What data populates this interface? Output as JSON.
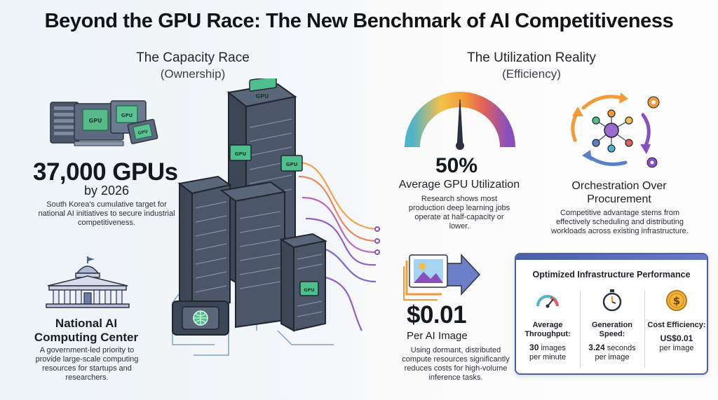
{
  "title": "Beyond the GPU Race: The New Benchmark of AI Competitiveness",
  "left": {
    "heading": "The Capacity Race",
    "subheading": "(Ownership)",
    "gpus": {
      "value": "37,000 GPUs",
      "by": "by 2026",
      "description": "South Korea's cumulative target for national AI initiatives to secure industrial competitiveness."
    },
    "computing_center": {
      "title": "National AI Computing Center",
      "description": "A government-led priority to provide large-scale computing resources for startups and researchers."
    },
    "chip_labels": [
      "GPU",
      "GPU",
      "GPU",
      "GPU",
      "GPU",
      "GPU"
    ]
  },
  "right": {
    "heading": "The Utilization Reality",
    "subheading": "(Efficiency)",
    "utilization": {
      "value": "50%",
      "label": "Average GPU Utilization",
      "description": "Research shows most production deep learning jobs operate at half-capacity or lower.",
      "gauge_level": 0.5
    },
    "orchestration": {
      "title": "Orchestration Over Procurement",
      "description": "Competitive advantage stems from effectively scheduling and distributing workloads across existing infrastructure."
    },
    "cost": {
      "value": "$0.01",
      "label": "Per AI Image",
      "description": "Using dormant, distributed compute resources significantly reduces costs for high-volume inference tasks."
    },
    "card": {
      "title": "Optimized Infrastructure Performance",
      "metrics": [
        {
          "label": "Average Throughput:",
          "value_bold": "30",
          "value_rest": " images",
          "unit": "per minute",
          "icon": "speedometer-icon"
        },
        {
          "label": "Generation Speed:",
          "value_bold": "3.24",
          "value_rest": " seconds",
          "unit": "per image",
          "icon": "stopwatch-icon"
        },
        {
          "label": "Cost Efficiency:",
          "value_bold": "US$0.01",
          "value_rest": "",
          "unit": "per image",
          "icon": "dollar-coin-icon"
        }
      ]
    }
  },
  "colors": {
    "accent_blue": "#4a5fa8",
    "purple": "#8a4fbf",
    "orange": "#f29a38",
    "teal": "#2aa7a0",
    "server_dark": "#3b4656",
    "circuit_green": "#4fc08d"
  }
}
